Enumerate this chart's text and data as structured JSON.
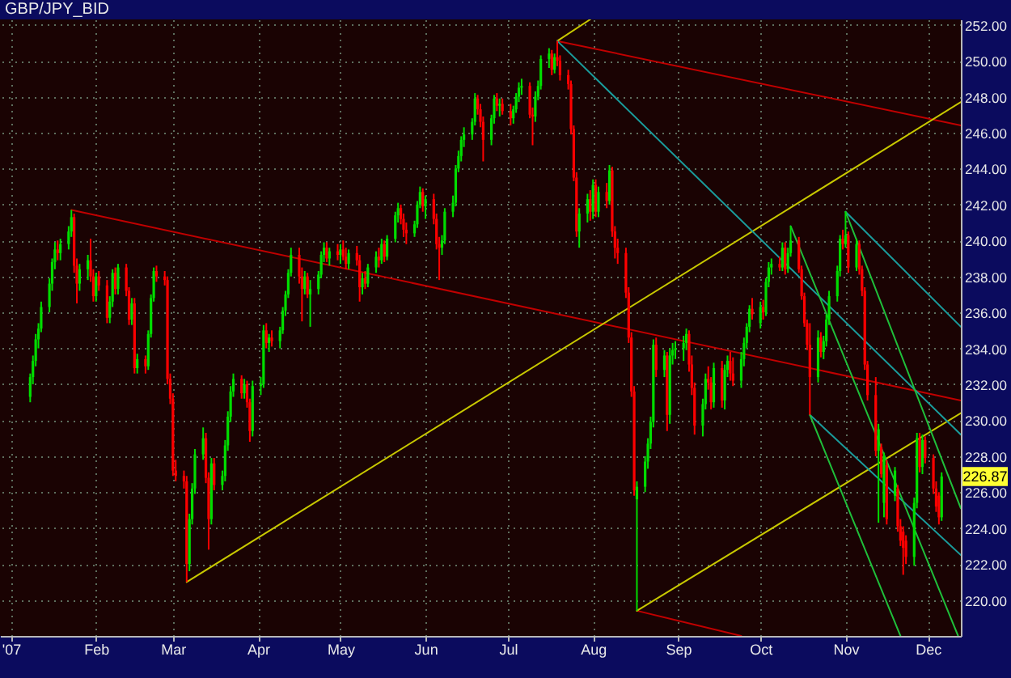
{
  "chart_data": {
    "type": "candlestick",
    "title": "GBP/JPY_BID",
    "x": [
      "2007-01-08",
      "2007-01-09",
      "2007-01-10",
      "2007-01-11",
      "2007-01-12",
      "2007-01-15",
      "2007-01-16",
      "2007-01-17",
      "2007-01-18",
      "2007-01-19",
      "2007-01-22",
      "2007-01-23",
      "2007-01-24",
      "2007-01-25",
      "2007-01-26",
      "2007-01-29",
      "2007-01-30",
      "2007-01-31",
      "2007-02-01",
      "2007-02-02",
      "2007-02-05",
      "2007-02-06",
      "2007-02-07",
      "2007-02-08",
      "2007-02-09",
      "2007-02-12",
      "2007-02-13",
      "2007-02-14",
      "2007-02-15",
      "2007-02-16",
      "2007-02-19",
      "2007-02-20",
      "2007-02-21",
      "2007-02-22",
      "2007-02-23",
      "2007-02-26",
      "2007-02-27",
      "2007-02-28",
      "2007-03-01",
      "2007-03-02",
      "2007-03-05",
      "2007-03-06",
      "2007-03-07",
      "2007-03-08",
      "2007-03-09",
      "2007-03-12",
      "2007-03-13",
      "2007-03-14",
      "2007-03-15",
      "2007-03-16",
      "2007-03-19",
      "2007-03-20",
      "2007-03-21",
      "2007-03-22",
      "2007-03-23",
      "2007-03-26",
      "2007-03-27",
      "2007-03-28",
      "2007-03-29",
      "2007-03-30",
      "2007-04-02",
      "2007-04-03",
      "2007-04-04",
      "2007-04-05",
      "2007-04-06",
      "2007-04-09",
      "2007-04-10",
      "2007-04-11",
      "2007-04-12",
      "2007-04-13",
      "2007-04-16",
      "2007-04-17",
      "2007-04-18",
      "2007-04-19",
      "2007-04-20",
      "2007-04-23",
      "2007-04-24",
      "2007-04-25",
      "2007-04-26",
      "2007-04-27",
      "2007-04-30",
      "2007-05-01",
      "2007-05-02",
      "2007-05-03",
      "2007-05-04",
      "2007-05-07",
      "2007-05-08",
      "2007-05-09",
      "2007-05-10",
      "2007-05-11",
      "2007-05-14",
      "2007-05-15",
      "2007-05-16",
      "2007-05-17",
      "2007-05-18",
      "2007-05-21",
      "2007-05-22",
      "2007-05-23",
      "2007-05-24",
      "2007-05-25",
      "2007-05-28",
      "2007-05-29",
      "2007-05-30",
      "2007-05-31",
      "2007-06-01",
      "2007-06-04",
      "2007-06-05",
      "2007-06-06",
      "2007-06-07",
      "2007-06-08",
      "2007-06-11",
      "2007-06-12",
      "2007-06-13",
      "2007-06-14",
      "2007-06-15",
      "2007-06-18",
      "2007-06-19",
      "2007-06-20",
      "2007-06-21",
      "2007-06-22",
      "2007-06-25",
      "2007-06-26",
      "2007-06-27",
      "2007-06-28",
      "2007-06-29",
      "2007-07-02",
      "2007-07-03",
      "2007-07-04",
      "2007-07-05",
      "2007-07-06",
      "2007-07-09",
      "2007-07-10",
      "2007-07-11",
      "2007-07-12",
      "2007-07-13",
      "2007-07-16",
      "2007-07-17",
      "2007-07-18",
      "2007-07-19",
      "2007-07-20",
      "2007-07-23",
      "2007-07-24",
      "2007-07-25",
      "2007-07-26",
      "2007-07-27",
      "2007-07-30",
      "2007-07-31",
      "2007-08-01",
      "2007-08-02",
      "2007-08-03",
      "2007-08-06",
      "2007-08-07",
      "2007-08-08",
      "2007-08-09",
      "2007-08-10",
      "2007-08-13",
      "2007-08-14",
      "2007-08-15",
      "2007-08-16",
      "2007-08-17",
      "2007-08-20",
      "2007-08-21",
      "2007-08-22",
      "2007-08-23",
      "2007-08-24",
      "2007-08-27",
      "2007-08-28",
      "2007-08-29",
      "2007-08-30",
      "2007-08-31",
      "2007-09-03",
      "2007-09-04",
      "2007-09-05",
      "2007-09-06",
      "2007-09-07",
      "2007-09-10",
      "2007-09-11",
      "2007-09-12",
      "2007-09-13",
      "2007-09-14",
      "2007-09-17",
      "2007-09-18",
      "2007-09-19",
      "2007-09-20",
      "2007-09-21",
      "2007-09-24",
      "2007-09-25",
      "2007-09-26",
      "2007-09-27",
      "2007-09-28",
      "2007-10-01",
      "2007-10-02",
      "2007-10-03",
      "2007-10-04",
      "2007-10-05",
      "2007-10-08",
      "2007-10-09",
      "2007-10-10",
      "2007-10-11",
      "2007-10-12",
      "2007-10-15",
      "2007-10-16",
      "2007-10-17",
      "2007-10-18",
      "2007-10-19",
      "2007-10-22",
      "2007-10-23",
      "2007-10-24",
      "2007-10-25",
      "2007-10-26",
      "2007-10-29",
      "2007-10-30",
      "2007-10-31",
      "2007-11-01",
      "2007-11-02",
      "2007-11-05",
      "2007-11-06",
      "2007-11-07",
      "2007-11-08",
      "2007-11-09",
      "2007-11-12",
      "2007-11-13",
      "2007-11-14",
      "2007-11-15",
      "2007-11-16",
      "2007-11-19",
      "2007-11-20",
      "2007-11-21",
      "2007-11-22",
      "2007-11-23",
      "2007-11-26",
      "2007-11-27",
      "2007-11-28",
      "2007-11-29",
      "2007-11-30",
      "2007-12-03",
      "2007-12-04",
      "2007-12-05",
      "2007-12-06"
    ],
    "ohlc": [
      [
        231.3,
        232.6,
        231.0,
        232.4
      ],
      [
        232.4,
        233.6,
        232.0,
        233.3
      ],
      [
        233.3,
        234.8,
        233.0,
        234.5
      ],
      [
        234.5,
        235.4,
        234.0,
        235.1
      ],
      [
        235.1,
        236.6,
        234.9,
        236.3
      ],
      [
        236.3,
        237.9,
        236.0,
        237.6
      ],
      [
        237.6,
        239.0,
        237.2,
        238.8
      ],
      [
        238.8,
        239.9,
        238.4,
        239.5
      ],
      [
        239.5,
        240.0,
        238.9,
        239.3
      ],
      [
        239.3,
        240.1,
        238.9,
        239.8
      ],
      [
        239.8,
        240.8,
        239.5,
        240.5
      ],
      [
        240.5,
        241.7,
        240.2,
        241.3
      ],
      [
        241.3,
        241.5,
        238.2,
        238.6
      ],
      [
        238.6,
        239.0,
        236.5,
        237.6
      ],
      [
        237.6,
        238.7,
        237.2,
        238.4
      ],
      [
        238.4,
        239.2,
        237.8,
        238.9
      ],
      [
        238.9,
        240.1,
        237.7,
        238.0
      ],
      [
        238.0,
        238.4,
        236.6,
        236.9
      ],
      [
        236.9,
        238.2,
        236.6,
        238.0
      ],
      [
        238.0,
        238.3,
        237.2,
        237.5
      ],
      [
        237.5,
        237.8,
        235.4,
        235.7
      ],
      [
        235.7,
        236.9,
        235.4,
        236.6
      ],
      [
        236.6,
        238.4,
        236.3,
        238.2
      ],
      [
        238.2,
        238.5,
        237.0,
        237.3
      ],
      [
        237.3,
        238.7,
        237.0,
        238.5
      ],
      [
        238.5,
        238.7,
        236.9,
        237.2
      ],
      [
        237.2,
        237.4,
        235.3,
        235.6
      ],
      [
        235.6,
        236.8,
        235.3,
        236.5
      ],
      [
        236.5,
        236.8,
        232.6,
        232.9
      ],
      [
        232.9,
        233.7,
        232.6,
        233.4
      ],
      [
        233.4,
        233.6,
        232.6,
        233.0
      ],
      [
        233.0,
        235.0,
        232.8,
        234.8
      ],
      [
        234.8,
        237.0,
        234.6,
        236.8
      ],
      [
        236.8,
        238.5,
        236.6,
        238.3
      ],
      [
        238.3,
        238.6,
        237.7,
        238.0
      ],
      [
        238.0,
        238.3,
        237.5,
        237.8
      ],
      [
        237.8,
        238.0,
        232.0,
        232.3
      ],
      [
        232.3,
        232.6,
        230.9,
        231.2
      ],
      [
        231.2,
        231.5,
        226.9,
        227.2
      ],
      [
        227.2,
        227.8,
        226.6,
        226.9
      ],
      [
        226.9,
        227.2,
        226.2,
        226.6
      ],
      [
        226.6,
        226.9,
        221.0,
        222.0
      ],
      [
        222.0,
        224.8,
        221.6,
        224.5
      ],
      [
        224.5,
        226.5,
        224.2,
        226.2
      ],
      [
        226.2,
        228.4,
        225.9,
        228.1
      ],
      [
        228.1,
        229.6,
        227.8,
        229.0
      ],
      [
        229.0,
        229.3,
        226.5,
        226.8
      ],
      [
        226.8,
        227.1,
        222.8,
        224.5
      ],
      [
        224.5,
        227.9,
        224.2,
        227.6
      ],
      [
        227.6,
        227.9,
        226.1,
        226.4
      ],
      [
        226.4,
        227.2,
        226.1,
        226.9
      ],
      [
        226.9,
        228.9,
        226.6,
        228.6
      ],
      [
        228.6,
        230.5,
        228.3,
        230.2
      ],
      [
        230.2,
        231.9,
        229.9,
        231.6
      ],
      [
        231.6,
        232.6,
        231.3,
        232.3
      ],
      [
        232.3,
        232.5,
        231.2,
        231.5
      ],
      [
        231.5,
        232.3,
        231.2,
        232.0
      ],
      [
        232.0,
        232.2,
        230.7,
        231.0
      ],
      [
        231.0,
        231.2,
        228.8,
        229.4
      ],
      [
        229.4,
        232.2,
        229.1,
        231.9
      ],
      [
        231.9,
        232.4,
        231.4,
        232.0
      ],
      [
        232.0,
        235.3,
        231.8,
        235.0
      ],
      [
        235.0,
        235.4,
        234.0,
        234.3
      ],
      [
        234.3,
        234.8,
        233.8,
        234.6
      ],
      [
        234.6,
        235.0,
        234.1,
        234.4
      ],
      [
        234.4,
        235.2,
        234.0,
        235.0
      ],
      [
        235.0,
        236.3,
        234.8,
        236.1
      ],
      [
        236.1,
        237.2,
        235.8,
        237.0
      ],
      [
        237.0,
        238.4,
        236.8,
        238.2
      ],
      [
        238.2,
        239.6,
        238.0,
        239.2
      ],
      [
        239.2,
        239.6,
        237.6,
        238.0
      ],
      [
        238.0,
        238.5,
        235.5,
        237.3
      ],
      [
        237.3,
        238.3,
        237.0,
        238.0
      ],
      [
        238.0,
        238.2,
        236.8,
        237.0
      ],
      [
        237.0,
        237.8,
        235.2,
        237.3
      ],
      [
        237.3,
        238.3,
        237.0,
        238.1
      ],
      [
        238.1,
        239.4,
        237.9,
        239.2
      ],
      [
        239.2,
        239.9,
        238.8,
        239.6
      ],
      [
        239.6,
        239.9,
        238.8,
        239.0
      ],
      [
        239.0,
        239.6,
        238.6,
        239.4
      ],
      [
        239.4,
        239.8,
        238.9,
        239.2
      ],
      [
        239.2,
        239.8,
        238.7,
        239.5
      ],
      [
        239.5,
        240.0,
        238.9,
        239.1
      ],
      [
        239.1,
        239.6,
        238.4,
        238.7
      ],
      [
        238.7,
        239.5,
        238.4,
        239.3
      ],
      [
        239.3,
        239.7,
        238.6,
        238.9
      ],
      [
        238.9,
        239.2,
        236.6,
        237.4
      ],
      [
        237.4,
        238.2,
        237.0,
        237.9
      ],
      [
        237.9,
        238.3,
        237.3,
        237.6
      ],
      [
        237.6,
        238.7,
        237.4,
        238.5
      ],
      [
        238.5,
        239.4,
        238.2,
        239.1
      ],
      [
        239.1,
        239.6,
        238.5,
        238.9
      ],
      [
        238.9,
        240.1,
        238.7,
        239.8
      ],
      [
        239.8,
        240.0,
        238.8,
        239.1
      ],
      [
        239.1,
        240.3,
        238.9,
        240.1
      ],
      [
        240.1,
        241.6,
        239.9,
        241.4
      ],
      [
        241.4,
        242.1,
        241.0,
        241.8
      ],
      [
        241.8,
        242.0,
        240.9,
        241.2
      ],
      [
        241.2,
        241.5,
        240.2,
        240.6
      ],
      [
        240.6,
        241.0,
        239.8,
        240.4
      ],
      [
        240.4,
        241.1,
        240.2,
        240.9
      ],
      [
        240.9,
        242.2,
        240.7,
        242.0
      ],
      [
        242.0,
        243.0,
        241.8,
        242.7
      ],
      [
        242.7,
        242.9,
        241.6,
        241.9
      ],
      [
        241.9,
        242.5,
        241.2,
        242.3
      ],
      [
        242.3,
        242.6,
        240.9,
        241.2
      ],
      [
        241.2,
        241.5,
        239.5,
        239.8
      ],
      [
        239.8,
        240.2,
        237.8,
        239.6
      ],
      [
        239.6,
        240.3,
        239.2,
        240.0
      ],
      [
        240.0,
        241.8,
        239.8,
        241.6
      ],
      [
        241.6,
        242.5,
        241.3,
        242.1
      ],
      [
        242.1,
        244.2,
        241.9,
        244.0
      ],
      [
        244.0,
        245.0,
        243.8,
        244.7
      ],
      [
        244.7,
        245.8,
        244.4,
        245.6
      ],
      [
        245.6,
        246.3,
        245.2,
        245.9
      ],
      [
        245.9,
        246.8,
        245.6,
        246.6
      ],
      [
        246.6,
        248.2,
        246.4,
        247.9
      ],
      [
        247.9,
        248.1,
        247.0,
        247.3
      ],
      [
        247.3,
        247.6,
        246.3,
        246.6
      ],
      [
        246.6,
        246.9,
        244.4,
        245.6
      ],
      [
        245.6,
        247.0,
        245.3,
        246.8
      ],
      [
        246.8,
        248.1,
        246.5,
        247.9
      ],
      [
        247.9,
        248.2,
        247.2,
        247.5
      ],
      [
        247.5,
        247.9,
        246.9,
        247.6
      ],
      [
        247.6,
        247.9,
        247.0,
        247.2
      ],
      [
        247.2,
        247.6,
        246.4,
        246.8
      ],
      [
        246.8,
        247.5,
        246.5,
        247.3
      ],
      [
        247.3,
        248.2,
        247.1,
        248.0
      ],
      [
        248.0,
        248.8,
        247.7,
        248.5
      ],
      [
        248.5,
        249.0,
        248.1,
        248.6
      ],
      [
        248.6,
        248.8,
        246.8,
        247.0
      ],
      [
        247.0,
        247.4,
        245.3,
        246.9
      ],
      [
        246.9,
        248.3,
        246.6,
        248.0
      ],
      [
        248.0,
        248.9,
        247.8,
        248.6
      ],
      [
        248.6,
        250.3,
        248.4,
        250.1
      ],
      [
        250.1,
        250.7,
        249.6,
        250.4
      ],
      [
        250.4,
        250.6,
        249.2,
        249.5
      ],
      [
        249.5,
        250.4,
        249.3,
        250.2
      ],
      [
        250.2,
        251.1,
        249.7,
        250.0
      ],
      [
        250.0,
        250.3,
        248.9,
        249.2
      ],
      [
        249.2,
        249.5,
        248.4,
        248.7
      ],
      [
        248.7,
        248.9,
        245.9,
        246.2
      ],
      [
        246.2,
        246.4,
        243.3,
        243.5
      ],
      [
        243.5,
        243.8,
        240.2,
        240.5
      ],
      [
        240.5,
        241.8,
        239.6,
        241.5
      ],
      [
        241.5,
        242.6,
        241.0,
        242.3
      ],
      [
        242.3,
        242.8,
        241.1,
        241.6
      ],
      [
        241.6,
        243.4,
        241.2,
        243.1
      ],
      [
        243.1,
        243.4,
        241.3,
        241.6
      ],
      [
        241.6,
        243.0,
        241.3,
        242.7
      ],
      [
        242.7,
        243.2,
        241.8,
        242.2
      ],
      [
        242.2,
        244.2,
        242.0,
        243.9
      ],
      [
        243.9,
        244.1,
        240.2,
        240.5
      ],
      [
        240.5,
        240.8,
        239.0,
        239.6
      ],
      [
        239.6,
        240.1,
        238.7,
        239.3
      ],
      [
        239.3,
        239.6,
        236.8,
        237.1
      ],
      [
        237.1,
        237.4,
        234.3,
        234.6
      ],
      [
        234.6,
        234.9,
        231.3,
        231.6
      ],
      [
        231.6,
        231.9,
        225.8,
        226.1
      ],
      [
        225.6,
        226.6,
        219.4,
        226.3
      ],
      [
        226.3,
        228.0,
        226.0,
        227.7
      ],
      [
        227.7,
        229.0,
        227.3,
        228.7
      ],
      [
        228.7,
        230.2,
        228.4,
        229.9
      ],
      [
        229.9,
        234.5,
        229.6,
        234.2
      ],
      [
        234.2,
        234.6,
        232.4,
        232.8
      ],
      [
        232.8,
        233.9,
        232.4,
        233.6
      ],
      [
        233.6,
        233.8,
        229.4,
        230.3
      ],
      [
        230.3,
        234.0,
        229.8,
        233.6
      ],
      [
        233.6,
        234.3,
        233.1,
        233.9
      ],
      [
        233.9,
        234.4,
        233.4,
        234.0
      ],
      [
        234.0,
        234.7,
        233.3,
        234.3
      ],
      [
        234.3,
        235.1,
        233.9,
        234.8
      ],
      [
        234.8,
        235.0,
        232.7,
        233.1
      ],
      [
        233.1,
        233.6,
        231.4,
        231.8
      ],
      [
        231.8,
        232.1,
        229.2,
        229.7
      ],
      [
        229.7,
        231.2,
        229.1,
        230.9
      ],
      [
        230.9,
        232.6,
        230.6,
        232.3
      ],
      [
        232.3,
        233.0,
        231.7,
        232.1
      ],
      [
        232.1,
        232.4,
        230.6,
        231.0
      ],
      [
        231.0,
        233.2,
        230.7,
        232.9
      ],
      [
        232.9,
        233.3,
        230.7,
        231.1
      ],
      [
        231.1,
        233.1,
        230.6,
        232.8
      ],
      [
        232.8,
        233.6,
        232.4,
        233.3
      ],
      [
        233.3,
        233.8,
        232.2,
        232.6
      ],
      [
        232.6,
        233.5,
        231.9,
        232.2
      ],
      [
        232.2,
        233.8,
        231.8,
        233.4
      ],
      [
        233.4,
        234.6,
        233.0,
        234.3
      ],
      [
        234.3,
        235.4,
        234.0,
        235.2
      ],
      [
        235.2,
        236.4,
        234.9,
        236.2
      ],
      [
        236.2,
        236.8,
        235.6,
        235.9
      ],
      [
        235.4,
        236.6,
        235.1,
        236.3
      ],
      [
        236.3,
        236.7,
        235.6,
        236.0
      ],
      [
        236.0,
        237.9,
        235.8,
        237.7
      ],
      [
        237.7,
        238.8,
        237.4,
        238.5
      ],
      [
        238.5,
        239.0,
        238.1,
        238.7
      ],
      [
        238.7,
        239.1,
        238.3,
        238.5
      ],
      [
        238.5,
        239.9,
        238.3,
        239.6
      ],
      [
        239.6,
        239.9,
        238.1,
        238.4
      ],
      [
        238.4,
        239.6,
        238.2,
        239.3
      ],
      [
        239.3,
        240.8,
        239.1,
        240.0
      ],
      [
        240.0,
        240.2,
        238.2,
        238.4
      ],
      [
        238.4,
        238.6,
        236.7,
        236.9
      ],
      [
        236.9,
        237.1,
        235.2,
        235.4
      ],
      [
        235.4,
        235.6,
        233.9,
        234.2
      ],
      [
        234.2,
        235.4,
        230.3,
        232.4
      ],
      [
        232.4,
        235.0,
        232.1,
        234.6
      ],
      [
        234.6,
        234.9,
        233.5,
        233.8
      ],
      [
        233.8,
        234.7,
        233.4,
        234.4
      ],
      [
        234.4,
        235.9,
        234.1,
        235.6
      ],
      [
        235.6,
        237.2,
        235.3,
        236.9
      ],
      [
        236.9,
        238.6,
        236.6,
        238.3
      ],
      [
        238.3,
        240.3,
        238.0,
        240.1
      ],
      [
        240.1,
        240.6,
        239.5,
        239.8
      ],
      [
        239.8,
        241.6,
        239.6,
        240.3
      ],
      [
        240.3,
        240.5,
        238.2,
        238.5
      ],
      [
        238.5,
        240.1,
        238.3,
        239.8
      ],
      [
        239.8,
        240.0,
        238.1,
        238.4
      ],
      [
        238.4,
        238.6,
        236.9,
        237.2
      ],
      [
        237.2,
        237.4,
        232.8,
        233.1
      ],
      [
        233.1,
        233.3,
        231.1,
        231.4
      ],
      [
        231.4,
        232.4,
        228.0,
        228.3
      ],
      [
        228.3,
        229.8,
        224.3,
        229.5
      ],
      [
        228.5,
        228.7,
        226.8,
        227.0
      ],
      [
        225.4,
        228.2,
        224.6,
        228.0
      ],
      [
        227.5,
        227.8,
        224.2,
        224.5
      ],
      [
        225.8,
        227.4,
        225.5,
        227.2
      ],
      [
        226.2,
        226.4,
        223.8,
        224.1
      ],
      [
        224.1,
        224.5,
        223.0,
        223.3
      ],
      [
        223.8,
        224.1,
        221.4,
        222.9
      ],
      [
        223.3,
        223.6,
        222.0,
        222.4
      ],
      [
        222.4,
        225.7,
        221.9,
        225.4
      ],
      [
        225.4,
        229.3,
        225.1,
        229.0
      ],
      [
        229.0,
        229.3,
        227.1,
        227.4
      ],
      [
        227.4,
        229.2,
        227.0,
        228.9
      ],
      [
        228.9,
        229.1,
        227.6,
        227.9
      ],
      [
        227.9,
        228.1,
        225.9,
        226.2
      ],
      [
        226.2,
        226.6,
        224.9,
        225.2
      ],
      [
        225.8,
        226.0,
        224.2,
        224.6
      ],
      [
        224.6,
        227.1,
        224.4,
        226.87
      ]
    ],
    "colors": [
      "#00dd00",
      "#00dd00",
      "#00dd00",
      "#00dd00",
      "#00dd00",
      "#00dd00",
      "#00dd00",
      "#00dd00",
      "#ff0000",
      "#00dd00",
      "#00dd00",
      "#00dd00",
      "#ff0000",
      "#ff0000",
      "#00dd00",
      "#00dd00",
      "#ff0000",
      "#ff0000",
      "#00dd00",
      "#ff0000",
      "#ff0000",
      "#00dd00",
      "#00dd00",
      "#ff0000",
      "#00dd00",
      "#ff0000",
      "#ff0000",
      "#00dd00",
      "#ff0000",
      "#00dd00",
      "#ff0000",
      "#00dd00",
      "#00dd00",
      "#00dd00",
      "#ff0000",
      "#ff0000",
      "#ff0000",
      "#ff0000",
      "#ff0000",
      "#ff0000",
      "#ff0000",
      "#ff0000",
      "#00dd00",
      "#00dd00",
      "#00dd00",
      "#00dd00",
      "#ff0000",
      "#ff0000",
      "#00dd00",
      "#ff0000",
      "#00dd00",
      "#00dd00",
      "#00dd00",
      "#00dd00",
      "#00dd00",
      "#ff0000",
      "#00dd00",
      "#ff0000",
      "#ff0000",
      "#00dd00",
      "#00dd00",
      "#00dd00",
      "#ff0000",
      "#00dd00",
      "#ff0000",
      "#00dd00",
      "#00dd00",
      "#00dd00",
      "#00dd00",
      "#00dd00",
      "#ff0000",
      "#ff0000",
      "#00dd00",
      "#ff0000",
      "#00dd00",
      "#00dd00",
      "#00dd00",
      "#00dd00",
      "#ff0000",
      "#00dd00",
      "#ff0000",
      "#00dd00",
      "#ff0000",
      "#ff0000",
      "#00dd00",
      "#ff0000",
      "#ff0000",
      "#00dd00",
      "#ff0000",
      "#00dd00",
      "#00dd00",
      "#ff0000",
      "#00dd00",
      "#ff0000",
      "#00dd00",
      "#00dd00",
      "#00dd00",
      "#ff0000",
      "#ff0000",
      "#ff0000",
      "#00dd00",
      "#00dd00",
      "#00dd00",
      "#ff0000",
      "#00dd00",
      "#ff0000",
      "#ff0000",
      "#ff0000",
      "#00dd00",
      "#00dd00",
      "#00dd00",
      "#00dd00",
      "#00dd00",
      "#00dd00",
      "#00dd00",
      "#00dd00",
      "#00dd00",
      "#ff0000",
      "#ff0000",
      "#ff0000",
      "#00dd00",
      "#00dd00",
      "#ff0000",
      "#00dd00",
      "#ff0000",
      "#ff0000",
      "#00dd00",
      "#00dd00",
      "#00dd00",
      "#00dd00",
      "#ff0000",
      "#ff0000",
      "#00dd00",
      "#00dd00",
      "#00dd00",
      "#00dd00",
      "#ff0000",
      "#00dd00",
      "#ff0000",
      "#ff0000",
      "#ff0000",
      "#ff0000",
      "#ff0000",
      "#ff0000",
      "#00dd00",
      "#00dd00",
      "#ff0000",
      "#00dd00",
      "#ff0000",
      "#00dd00",
      "#ff0000",
      "#00dd00",
      "#ff0000",
      "#ff0000",
      "#ff0000",
      "#ff0000",
      "#ff0000",
      "#ff0000",
      "#ff0000",
      "#00dd00",
      "#00dd00",
      "#00dd00",
      "#00dd00",
      "#00dd00",
      "#ff0000",
      "#00dd00",
      "#ff0000",
      "#00dd00",
      "#00dd00",
      "#00dd00",
      "#00dd00",
      "#00dd00",
      "#ff0000",
      "#ff0000",
      "#ff0000",
      "#00dd00",
      "#00dd00",
      "#ff0000",
      "#ff0000",
      "#00dd00",
      "#ff0000",
      "#00dd00",
      "#00dd00",
      "#ff0000",
      "#ff0000",
      "#00dd00",
      "#00dd00",
      "#00dd00",
      "#00dd00",
      "#ff0000",
      "#00dd00",
      "#ff0000",
      "#00dd00",
      "#00dd00",
      "#00dd00",
      "#ff0000",
      "#00dd00",
      "#ff0000",
      "#00dd00",
      "#00dd00",
      "#ff0000",
      "#ff0000",
      "#ff0000",
      "#ff0000",
      "#ff0000",
      "#00dd00",
      "#ff0000",
      "#00dd00",
      "#00dd00",
      "#00dd00",
      "#00dd00",
      "#00dd00",
      "#ff0000",
      "#00dd00",
      "#ff0000",
      "#00dd00",
      "#ff0000",
      "#ff0000",
      "#ff0000",
      "#ff0000",
      "#ff0000",
      "#00dd00",
      "#ff0000",
      "#00dd00",
      "#ff0000",
      "#00dd00",
      "#ff0000",
      "#ff0000",
      "#ff0000",
      "#ff0000",
      "#00dd00",
      "#00dd00",
      "#ff0000",
      "#00dd00",
      "#ff0000",
      "#ff0000",
      "#ff0000",
      "#ff0000",
      "#00dd00"
    ],
    "series": [
      {
        "type": "line",
        "color": "#c00000",
        "x": [
          "2007-01-23",
          "2007-12-13"
        ],
        "values": [
          241.7,
          231.1
        ]
      },
      {
        "type": "line",
        "color": "#c00000",
        "x": [
          "2007-07-19",
          "2007-12-13"
        ],
        "values": [
          251.1,
          246.4
        ]
      },
      {
        "type": "line",
        "color": "#c00000",
        "x": [
          "2007-08-17",
          "2007-09-24"
        ],
        "values": [
          219.4,
          218.0
        ]
      },
      {
        "type": "line",
        "color": "#c8c800",
        "x": [
          "2007-03-06",
          "2007-12-13"
        ],
        "values": [
          221.0,
          247.7
        ]
      },
      {
        "type": "line",
        "color": "#c8c800",
        "x": [
          "2007-07-19",
          "2007-07-31"
        ],
        "values": [
          251.1,
          252.3
        ]
      },
      {
        "type": "line",
        "color": "#c8c800",
        "x": [
          "2007-08-17",
          "2007-12-13"
        ],
        "values": [
          219.4,
          230.4
        ]
      },
      {
        "type": "line",
        "color": "#1a9c9c",
        "x": [
          "2007-07-19",
          "2007-12-13"
        ],
        "values": [
          251.1,
          229.2
        ]
      },
      {
        "type": "line",
        "color": "#1a9c9c",
        "x": [
          "2007-11-01",
          "2007-12-13"
        ],
        "values": [
          241.6,
          235.2
        ]
      },
      {
        "type": "line",
        "color": "#1a9c9c",
        "x": [
          "2007-10-19",
          "2007-12-13"
        ],
        "values": [
          230.3,
          222.5
        ]
      },
      {
        "type": "line",
        "color": "#1fbf3a",
        "x": [
          "2007-10-12",
          "2007-12-12"
        ],
        "values": [
          240.8,
          218.0
        ]
      },
      {
        "type": "line",
        "color": "#1fbf3a",
        "x": [
          "2007-10-19",
          "2007-11-21"
        ],
        "values": [
          230.3,
          218.0
        ]
      },
      {
        "type": "line",
        "color": "#1fbf3a",
        "x": [
          "2007-11-01",
          "2007-12-13"
        ],
        "values": [
          241.6,
          225.1
        ]
      }
    ],
    "xlim": [
      "2006-12-28",
      "2007-12-13"
    ],
    "ylim": [
      218.0,
      252.3
    ],
    "xticks": [
      {
        "value": "2007-01-01",
        "label": "'07"
      },
      {
        "value": "2007-02-01",
        "label": "Feb"
      },
      {
        "value": "2007-03-01",
        "label": "Mar"
      },
      {
        "value": "2007-04-01",
        "label": "Apr"
      },
      {
        "value": "2007-05-01",
        "label": "May"
      },
      {
        "value": "2007-06-01",
        "label": "Jun"
      },
      {
        "value": "2007-07-01",
        "label": "Jul"
      },
      {
        "value": "2007-08-01",
        "label": "Aug"
      },
      {
        "value": "2007-09-01",
        "label": "Sep"
      },
      {
        "value": "2007-10-01",
        "label": "Oct"
      },
      {
        "value": "2007-11-01",
        "label": "Nov"
      },
      {
        "value": "2007-12-01",
        "label": "Dec"
      }
    ],
    "yticks": [
      {
        "value": 220,
        "label": "220.00"
      },
      {
        "value": 222,
        "label": "222.00"
      },
      {
        "value": 224,
        "label": "224.00"
      },
      {
        "value": 226,
        "label": "226.00"
      },
      {
        "value": 228,
        "label": "228.00"
      },
      {
        "value": 230,
        "label": "230.00"
      },
      {
        "value": 232,
        "label": "232.00"
      },
      {
        "value": 234,
        "label": "234.00"
      },
      {
        "value": 236,
        "label": "236.00"
      },
      {
        "value": 238,
        "label": "238.00"
      },
      {
        "value": 240,
        "label": "240.00"
      },
      {
        "value": 242,
        "label": "242.00"
      },
      {
        "value": 244,
        "label": "244.00"
      },
      {
        "value": 246,
        "label": "246.00"
      },
      {
        "value": 248,
        "label": "248.00"
      },
      {
        "value": 250,
        "label": "250.00"
      },
      {
        "value": 252,
        "label": "252.00"
      }
    ],
    "grid": true,
    "annotations": [
      "226.87"
    ]
  }
}
